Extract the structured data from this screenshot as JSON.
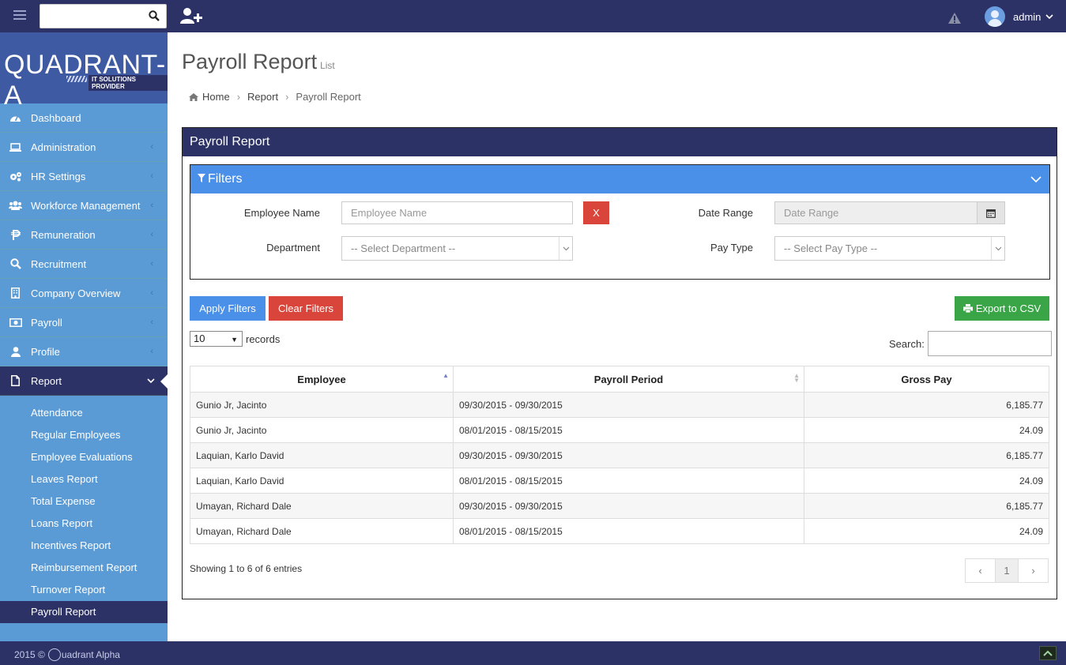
{
  "header": {
    "search_placeholder": "",
    "user_name": "admin"
  },
  "brand": {
    "logo_text": "QUADRANT-A",
    "logo_tagline": "IT SOLUTIONS PROVIDER"
  },
  "sidebar": {
    "items": [
      {
        "label": "Dashboard",
        "icon": "dashboard-icon"
      },
      {
        "label": "Administration",
        "icon": "laptop-icon"
      },
      {
        "label": "HR Settings",
        "icon": "gears-icon"
      },
      {
        "label": "Workforce Management",
        "icon": "users-icon"
      },
      {
        "label": "Remuneration",
        "icon": "peso-icon"
      },
      {
        "label": "Recruitment",
        "icon": "search-icon"
      },
      {
        "label": "Company Overview",
        "icon": "building-icon"
      },
      {
        "label": "Payroll",
        "icon": "money-icon"
      },
      {
        "label": "Profile",
        "icon": "user-icon"
      },
      {
        "label": "Report",
        "icon": "file-icon"
      }
    ],
    "report_sub": [
      "Attendance",
      "Regular Employees",
      "Employee Evaluations",
      "Leaves Report",
      "Total Expense",
      "Loans Report",
      "Incentives Report",
      "Reimbursement Report",
      "Turnover Report",
      "Payroll Report"
    ]
  },
  "page": {
    "title": "Payroll Report",
    "subtitle": "List",
    "breadcrumb": [
      "Home",
      "Report",
      "Payroll Report"
    ]
  },
  "box": {
    "title": "Payroll Report",
    "filters_title": "Filters",
    "employee_name_label": "Employee Name",
    "employee_name_placeholder": "Employee Name",
    "clear_x": "X",
    "date_range_label": "Date Range",
    "date_range_placeholder": "Date Range",
    "department_label": "Department",
    "department_selected": "-- Select Department --",
    "pay_type_label": "Pay Type",
    "pay_type_selected": "-- Select Pay Type --",
    "apply_label": "Apply Filters",
    "clear_label": "Clear Filters",
    "export_label": "Export to CSV",
    "length_value": "10",
    "length_suffix": "records",
    "search_label": "Search:"
  },
  "table": {
    "columns": [
      "Employee",
      "Payroll Period",
      "Gross Pay"
    ],
    "rows": [
      {
        "employee": "Gunio Jr, Jacinto",
        "period": "09/30/2015 - 09/30/2015",
        "gross": "6,185.77"
      },
      {
        "employee": "Gunio Jr, Jacinto",
        "period": "08/01/2015 - 08/15/2015",
        "gross": "24.09"
      },
      {
        "employee": "Laquian, Karlo David",
        "period": "09/30/2015 - 09/30/2015",
        "gross": "6,185.77"
      },
      {
        "employee": "Laquian, Karlo David",
        "period": "08/01/2015 - 08/15/2015",
        "gross": "24.09"
      },
      {
        "employee": "Umayan, Richard Dale",
        "period": "09/30/2015 - 09/30/2015",
        "gross": "6,185.77"
      },
      {
        "employee": "Umayan, Richard Dale",
        "period": "08/01/2015 - 08/15/2015",
        "gross": "24.09"
      }
    ],
    "info": "Showing 1 to 6 of 6 entries",
    "pager": {
      "prev": "‹",
      "page": "1",
      "next": "›"
    }
  },
  "footer": {
    "copy_prefix": "2015 ©",
    "copy_brand": "uadrant Alpha"
  },
  "colors": {
    "navy": "#2c3266",
    "sidebar": "#5b9bd5",
    "primary": "#4a90e8",
    "danger": "#d9453a",
    "success": "#3aa547"
  }
}
